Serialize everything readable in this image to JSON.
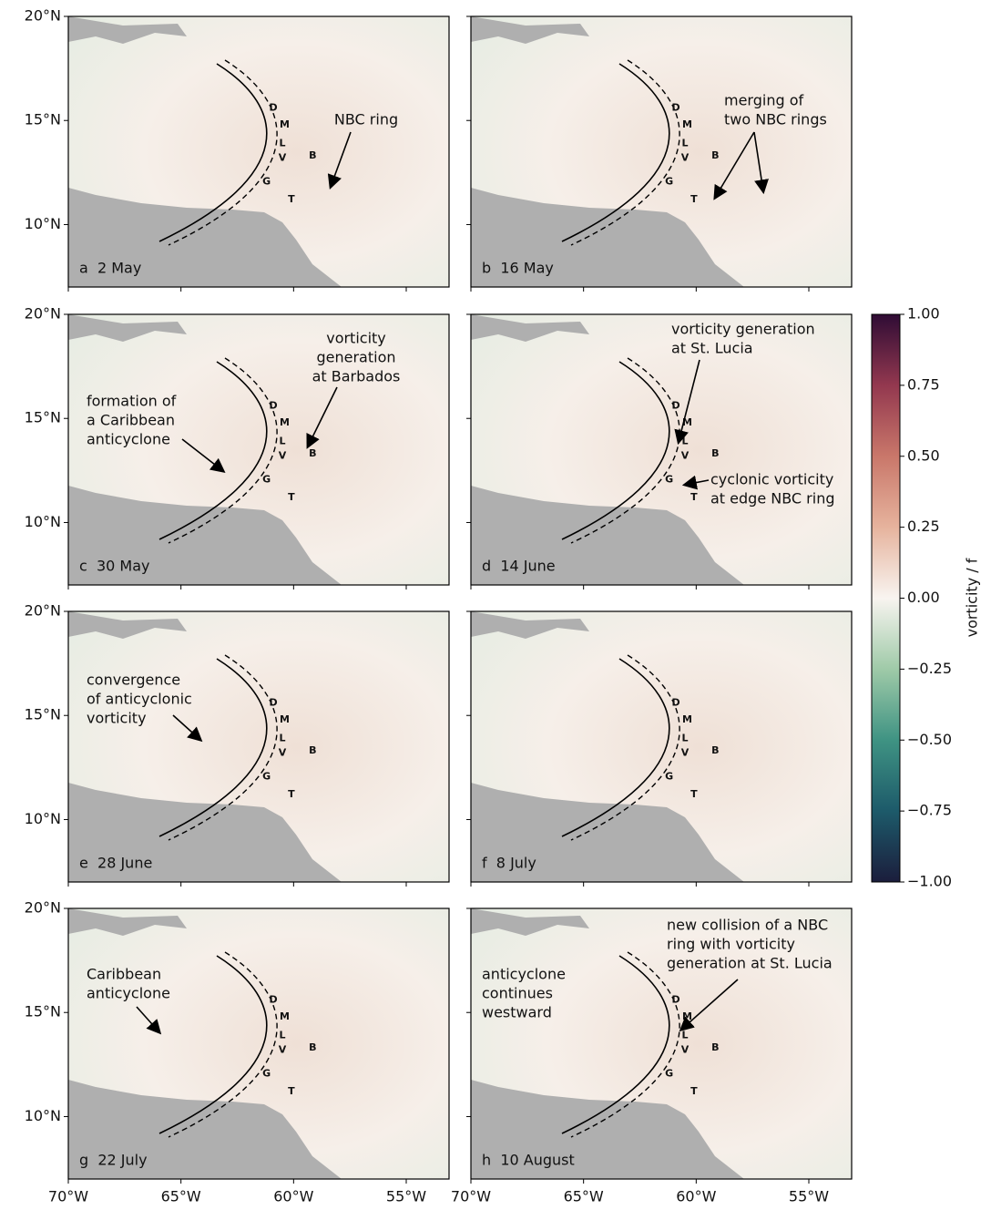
{
  "chart_data": {
    "type": "map",
    "xlim": [
      -70,
      -53.1
    ],
    "ylim": [
      7,
      20
    ],
    "xticks": [
      {
        "value": -70,
        "label": "70°W"
      },
      {
        "value": -65,
        "label": "65°W"
      },
      {
        "value": -60,
        "label": "60°W"
      },
      {
        "value": -55,
        "label": "55°W"
      }
    ],
    "yticks": [
      {
        "value": 20,
        "label": "20°N"
      },
      {
        "value": 15,
        "label": "15°N"
      },
      {
        "value": 10,
        "label": "10°N"
      }
    ],
    "islands": [
      "D",
      "M",
      "L",
      "V",
      "B",
      "G",
      "T"
    ],
    "panels": [
      {
        "label": "a  2 May",
        "annotations": [
          [
            "NBC ring"
          ]
        ]
      },
      {
        "label": "b  16 May",
        "annotations": [
          [
            "merging of",
            "two NBC rings"
          ]
        ]
      },
      {
        "label": "c  30 May",
        "annotations": [
          [
            "vorticity",
            "generation",
            "at Barbados"
          ],
          [
            "formation of",
            "a Caribbean",
            "anticyclone"
          ]
        ]
      },
      {
        "label": "d  14 June",
        "annotations": [
          [
            "vorticity generation",
            "at St. Lucia"
          ],
          [
            "cyclonic vorticity",
            "at edge NBC ring"
          ]
        ]
      },
      {
        "label": "e  28 June",
        "annotations": [
          [
            "convergence",
            "of anticyclonic",
            "vorticity"
          ]
        ]
      },
      {
        "label": "f  8 July",
        "annotations": []
      },
      {
        "label": "g  22 July",
        "annotations": [
          [
            "Caribbean",
            "anticyclone"
          ]
        ]
      },
      {
        "label": "h  10 August",
        "annotations": [
          [
            "anticyclone",
            "continues",
            "westward"
          ],
          [
            "new collision of a NBC",
            "ring with vorticity",
            "generation at St. Lucia"
          ]
        ]
      }
    ],
    "colorbar": {
      "label": "vorticity / f",
      "lim": [
        -1,
        1
      ],
      "ticks": [
        {
          "value": 1,
          "label": "1.00"
        },
        {
          "value": 0.75,
          "label": "0.75"
        },
        {
          "value": 0.5,
          "label": "0.50"
        },
        {
          "value": 0.25,
          "label": "0.25"
        },
        {
          "value": 0,
          "label": "0.00"
        },
        {
          "value": -0.25,
          "label": "−0.25"
        },
        {
          "value": -0.5,
          "label": "−0.50"
        },
        {
          "value": -0.75,
          "label": "−0.75"
        },
        {
          "value": -1,
          "label": "−1.00"
        }
      ]
    }
  }
}
